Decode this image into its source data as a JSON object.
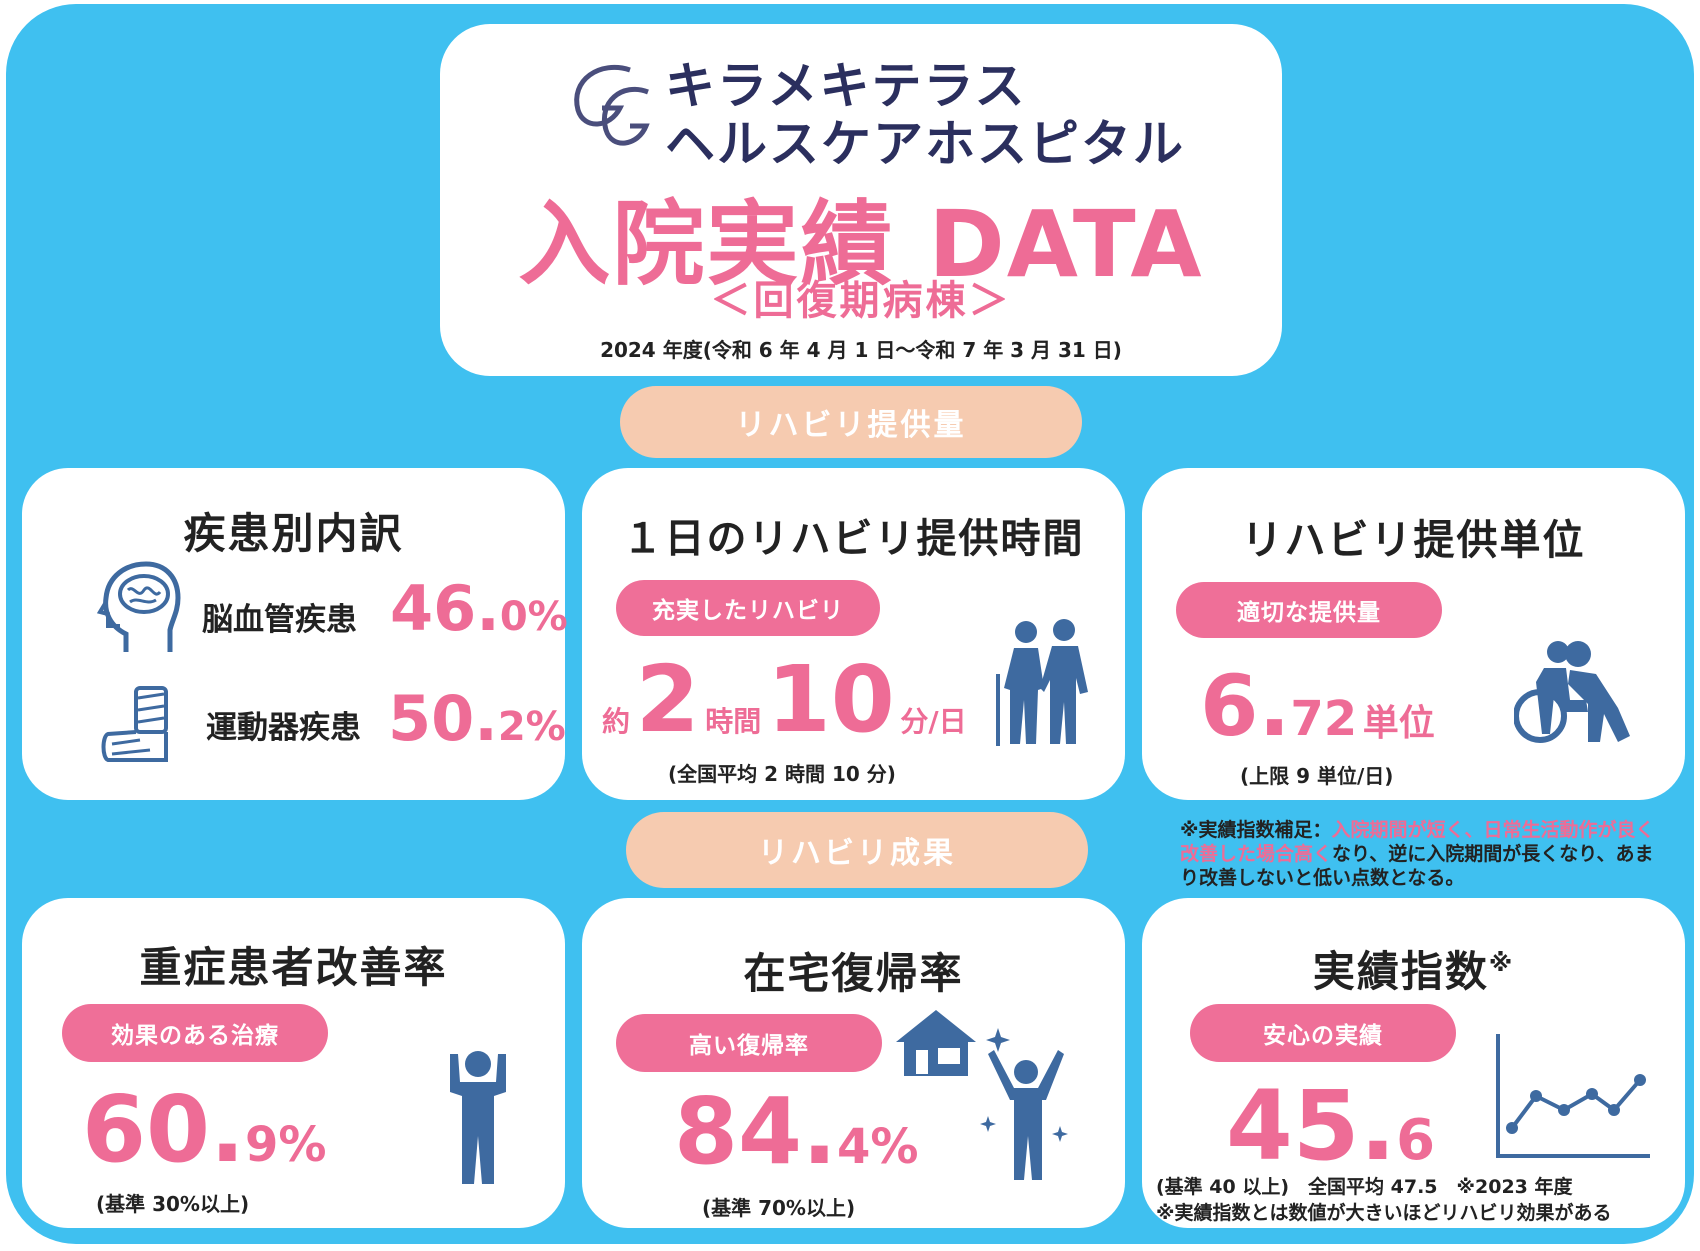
{
  "header": {
    "hospital_line1": "キラメキテラス",
    "hospital_line2": "ヘルスケアホスピタル",
    "logo_mark": "GG",
    "title": "入院実績 DATA",
    "subtitle": "＜回復期病棟＞",
    "period": "2024 年度(令和 6 年 4 月 1 日～令和 7 年 3 月 31 日)"
  },
  "sections": {
    "supply": "リハビリ提供量",
    "results": "リハビリ成果"
  },
  "disease": {
    "heading": "疾患別内訳",
    "cerebro_label": "脳血管疾患",
    "cerebro_int": "46.",
    "cerebro_dec": "0%",
    "ortho_label": "運動器疾患",
    "ortho_int": "50.",
    "ortho_dec": "2%",
    "icons": [
      "brain-head-icon",
      "cast-leg-icon"
    ]
  },
  "daily_time": {
    "heading": "１日のリハビリ提供時間",
    "badge": "充実したリハビリ",
    "prefix": "約",
    "hours": "2",
    "hours_unit": "時間",
    "minutes": "10",
    "minutes_unit": "分/日",
    "note": "(全国平均 2 時間 10 分)",
    "icon": "walking-assist-icon"
  },
  "units": {
    "heading": "リハビリ提供単位",
    "badge": "適切な提供量",
    "int": "6.",
    "dec": "72",
    "unit": "単位",
    "note": "(上限 9 単位/日)",
    "icon": "wheelchair-assist-icon"
  },
  "footnote": {
    "prefix": "※実績指数補足：",
    "highlight": "入院期間が短く、日常生活動作が良く改善した場合高く",
    "rest": "なり、逆に入院期間が長くなり、あまり改善しないと低い点数となる。"
  },
  "severe": {
    "heading": "重症患者改善率",
    "badge": "効果のある治療",
    "int": "60.",
    "dec": "9%",
    "note": "(基準 30%以上)",
    "icon": "person-strong-icon"
  },
  "home": {
    "heading": "在宅復帰率",
    "badge": "高い復帰率",
    "int": "84.",
    "dec": "4%",
    "note": "(基準 70%以上)",
    "icons": [
      "house-icon",
      "person-cheer-icon"
    ]
  },
  "index": {
    "heading": "実績指数",
    "heading_mark": "※",
    "badge": "安心の実績",
    "int": "45.",
    "dec": "6",
    "note1": "(基準 40 以上)　全国平均 47.5　※2023 年度",
    "note2": "※実績指数とは数値が大きいほどリハビリ効果がある",
    "icon": "line-chart-icon"
  },
  "colors": {
    "background": "#3fc0f0",
    "accent_pink": "#ee6c96",
    "section_peach": "#f6cbb0",
    "icon_blue": "#3e6aa0",
    "logo_navy": "#2b2f5e"
  }
}
